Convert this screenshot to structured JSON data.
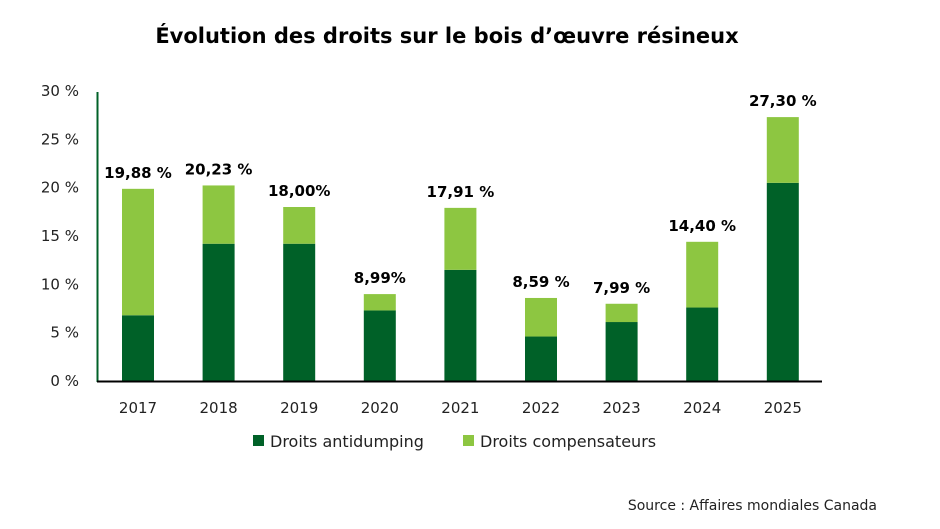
{
  "chart_data": {
    "type": "bar",
    "stacked": true,
    "title": "Évolution des droits sur le bois d’œuvre résineux",
    "xlabel": "",
    "ylabel": "",
    "ylim": [
      0,
      30
    ],
    "yticks": [
      0,
      5,
      10,
      15,
      20,
      25,
      30
    ],
    "ytick_labels": [
      "0 %",
      "5 %",
      "10 %",
      "15 %",
      "20 %",
      "25 %",
      "30 %"
    ],
    "categories": [
      "2017",
      "2018",
      "2019",
      "2020",
      "2021",
      "2022",
      "2023",
      "2024",
      "2025"
    ],
    "series": [
      {
        "name": "Droits antidumping",
        "color": "#006128",
        "values": [
          6.8,
          14.2,
          14.2,
          7.3,
          11.5,
          4.6,
          6.1,
          7.6,
          20.5
        ]
      },
      {
        "name": "Droits compensateurs",
        "color": "#8DC641",
        "values": [
          13.08,
          6.03,
          3.8,
          1.69,
          6.41,
          3.99,
          1.89,
          6.8,
          6.8
        ]
      }
    ],
    "totals": [
      19.88,
      20.23,
      18.0,
      8.99,
      17.91,
      8.59,
      7.99,
      14.4,
      27.3
    ],
    "data_labels": [
      "19,88 %",
      "20,23 %",
      "18,00%",
      "8,99%",
      "17,91 %",
      "8,59 %",
      "7,99 %",
      "14,40 %",
      "27,30 %"
    ],
    "legend_position": "bottom",
    "grid": false,
    "source": "Source : Affaires mondiales Canada"
  }
}
